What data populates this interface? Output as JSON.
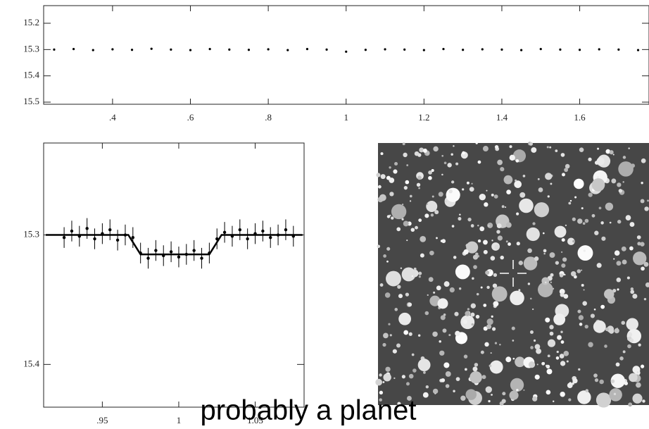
{
  "chart_data": [
    {
      "type": "scatter",
      "color": "#000000",
      "x": [
        0.25,
        0.3,
        0.35,
        0.4,
        0.45,
        0.5,
        0.55,
        0.6,
        0.65,
        0.7,
        0.75,
        0.8,
        0.85,
        0.9,
        0.95,
        1.0,
        1.05,
        1.1,
        1.15,
        1.2,
        1.25,
        1.3,
        1.35,
        1.4,
        1.45,
        1.5,
        1.55,
        1.6,
        1.65,
        1.7,
        1.75
      ],
      "values": [
        15.3,
        15.298,
        15.302,
        15.299,
        15.301,
        15.297,
        15.3,
        15.302,
        15.298,
        15.3,
        15.301,
        15.299,
        15.302,
        15.298,
        15.3,
        15.308,
        15.301,
        15.299,
        15.3,
        15.302,
        15.298,
        15.301,
        15.299,
        15.3,
        15.302,
        15.298,
        15.3,
        15.301,
        15.299,
        15.3,
        15.302
      ],
      "xlim": [
        0.223,
        1.778
      ],
      "ylim": [
        15.508,
        15.133
      ],
      "xticks": [
        {
          "value": 0.4,
          "label": ".4"
        },
        {
          "value": 0.6,
          "label": ".6"
        },
        {
          "value": 0.8,
          "label": ".8"
        },
        1,
        1.2,
        1.4,
        1.6
      ],
      "yticks": [
        15.2,
        15.3,
        15.4,
        15.5
      ]
    },
    {
      "type": "errorbar",
      "color": "#000000",
      "series": [
        {
          "x": [
            0.925,
            0.93,
            0.935,
            0.94,
            0.945,
            0.95,
            0.955,
            0.96,
            0.965,
            0.97,
            0.975,
            0.98,
            0.985,
            0.99,
            0.995,
            1.0,
            1.005,
            1.01,
            1.015,
            1.02,
            1.025,
            1.03,
            1.035,
            1.04,
            1.045,
            1.05,
            1.055,
            1.06,
            1.065,
            1.07,
            1.075
          ],
          "values": [
            15.302,
            15.297,
            15.301,
            15.295,
            15.303,
            15.299,
            15.296,
            15.304,
            15.3,
            15.302,
            15.314,
            15.318,
            15.312,
            15.316,
            15.313,
            15.317,
            15.315,
            15.312,
            15.318,
            15.314,
            15.303,
            15.298,
            15.301,
            15.296,
            15.303,
            15.299,
            15.297,
            15.302,
            15.3,
            15.296,
            15.301
          ],
          "errors": [
            0.008,
            0.008,
            0.008,
            0.008,
            0.008,
            0.008,
            0.008,
            0.008,
            0.008,
            0.008,
            0.008,
            0.008,
            0.008,
            0.008,
            0.008,
            0.008,
            0.008,
            0.008,
            0.008,
            0.008,
            0.008,
            0.008,
            0.008,
            0.008,
            0.008,
            0.008,
            0.008,
            0.008,
            0.008,
            0.008,
            0.008
          ]
        },
        {
          "x": [
            0.913,
            0.967,
            0.975,
            1.02,
            1.028,
            1.081
          ],
          "values": [
            15.3,
            15.3,
            15.315,
            15.315,
            15.3,
            15.3
          ]
        }
      ],
      "xlim": [
        0.9116,
        1.082
      ],
      "ylim": [
        15.433,
        15.229
      ],
      "xticks": [
        {
          "value": 0.95,
          "label": ".95"
        },
        1,
        1.05
      ],
      "yticks": [
        15.3,
        15.4
      ]
    }
  ],
  "caption": "probably a planet"
}
